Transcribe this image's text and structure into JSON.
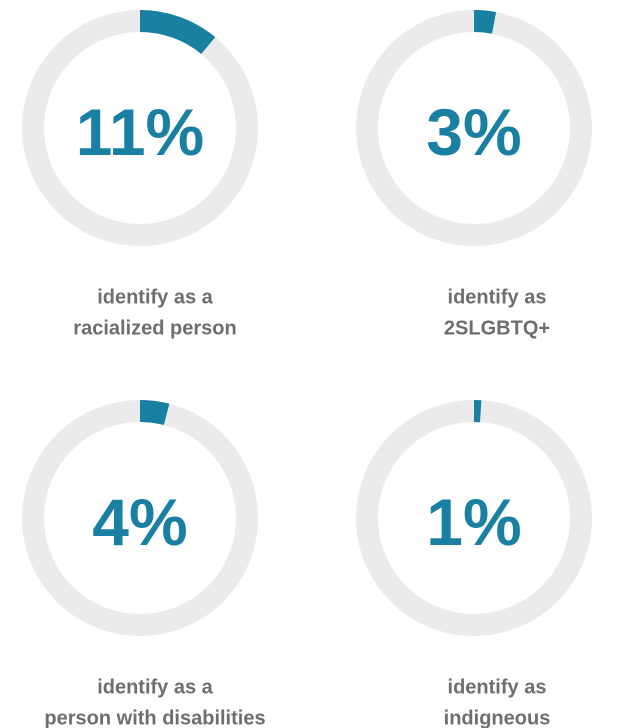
{
  "chart_data": [
    {
      "type": "progress-ring",
      "values": [
        11
      ],
      "value_labels": [
        "11%"
      ],
      "ylim": [
        0,
        100
      ],
      "caption": [
        "identify as a",
        "racialized person"
      ],
      "color": "#1a80a2",
      "track_color": "#ebebeb"
    },
    {
      "type": "progress-ring",
      "values": [
        3
      ],
      "value_labels": [
        "3%"
      ],
      "ylim": [
        0,
        100
      ],
      "caption": [
        "identify as",
        "2SLGBTQ+"
      ],
      "color": "#1a80a2",
      "track_color": "#ebebeb"
    },
    {
      "type": "progress-ring",
      "values": [
        4
      ],
      "value_labels": [
        "4%"
      ],
      "ylim": [
        0,
        100
      ],
      "caption": [
        "identify as a",
        "person with disabilities"
      ],
      "color": "#1a80a2",
      "track_color": "#ebebeb"
    },
    {
      "type": "progress-ring",
      "values": [
        1
      ],
      "value_labels": [
        "1%"
      ],
      "ylim": [
        0,
        100
      ],
      "caption": [
        "identify as",
        "indigneous"
      ],
      "color": "#1a80a2",
      "track_color": "#ebebeb"
    }
  ]
}
